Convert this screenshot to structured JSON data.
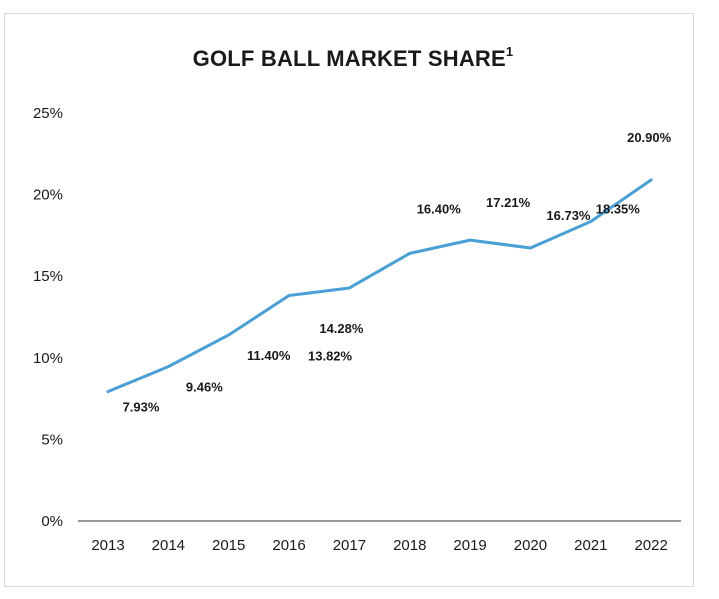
{
  "chart_data": {
    "type": "line",
    "title": "GOLF BALL MARKET SHARE",
    "title_superscript": "1",
    "categories": [
      "2013",
      "2014",
      "2015",
      "2016",
      "2017",
      "2018",
      "2019",
      "2020",
      "2021",
      "2022"
    ],
    "values": [
      7.93,
      9.46,
      11.4,
      13.82,
      14.28,
      16.4,
      17.21,
      16.73,
      18.35,
      20.9
    ],
    "data_labels": [
      "7.93%",
      "9.46%",
      "11.40%",
      "13.82%",
      "14.28%",
      "16.40%",
      "17.21%",
      "16.73%",
      "18.35%",
      "20.90%"
    ],
    "ylim": [
      0,
      25
    ],
    "yticks": [
      0,
      5,
      10,
      15,
      20,
      25
    ],
    "ytick_labels": [
      "0%",
      "5%",
      "10%",
      "15%",
      "20%",
      "25%"
    ],
    "xlabel": "",
    "ylabel": "",
    "grid": false,
    "line_color": "#4a9fd4"
  }
}
